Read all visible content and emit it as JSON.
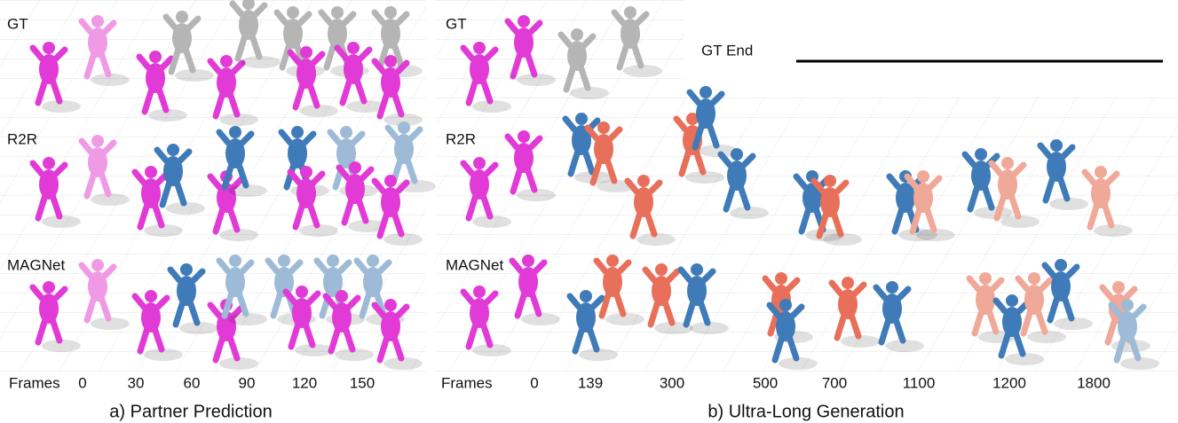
{
  "panels": [
    {
      "row_labels": [
        "GT",
        "R2R",
        "MAGNet"
      ],
      "frames_label": "Frames",
      "frames": [
        0,
        30,
        60,
        90,
        120,
        150
      ],
      "caption": "a) Partner Prediction"
    },
    {
      "row_labels": [
        "GT",
        "R2R",
        "MAGNet"
      ],
      "frames_label": "Frames",
      "frames": [
        0,
        139,
        300,
        500,
        700,
        1100,
        1200,
        1800
      ],
      "caption": "b) Ultra-Long Generation",
      "gt_end_label": "GT End"
    }
  ]
}
